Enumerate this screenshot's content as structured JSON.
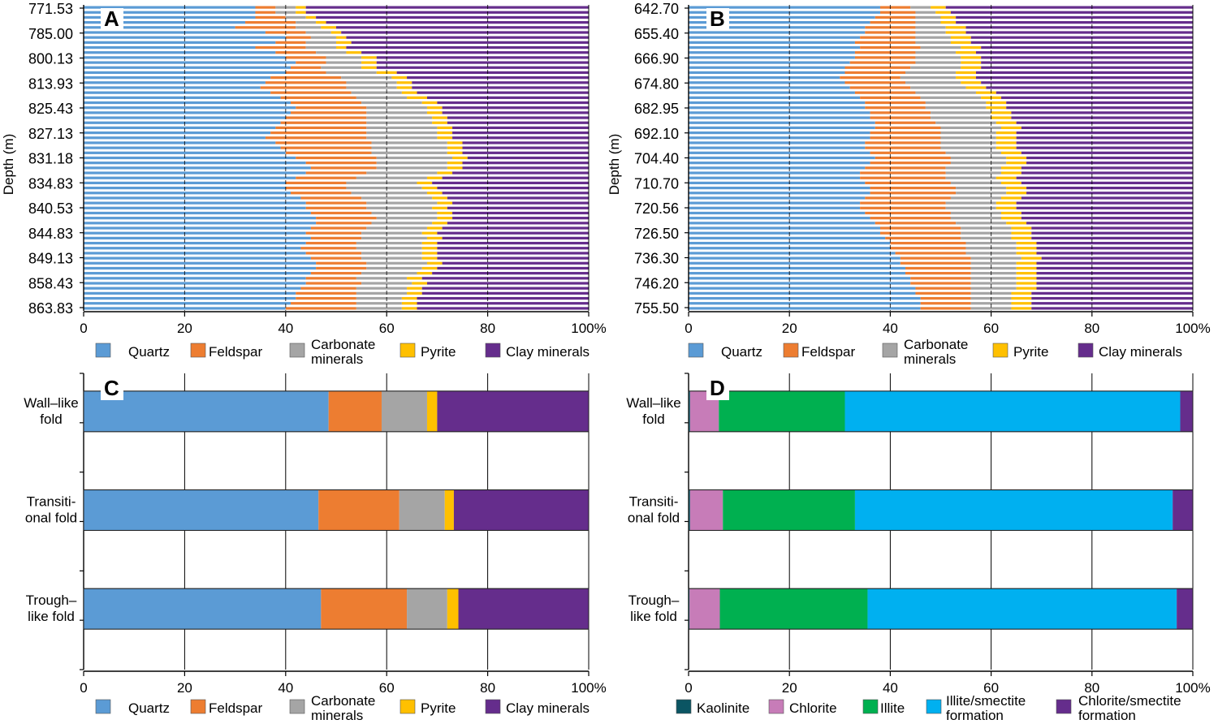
{
  "chart_data": [
    {
      "id": "A",
      "type": "bar",
      "orientation": "horizontal",
      "stacked": true,
      "panel_label": "A",
      "ylabel": "Depth (m)",
      "xlim": [
        0,
        100
      ],
      "x_ticks": [
        "0",
        "20",
        "40",
        "60",
        "80",
        "100%"
      ],
      "y_tick_labels": [
        "771.53",
        "785.00",
        "800.13",
        "813.93",
        "825.43",
        "827.13",
        "831.18",
        "834.83",
        "840.53",
        "844.83",
        "849.13",
        "858.43",
        "863.83"
      ],
      "grid": "vertical dashed",
      "bar_count": 61,
      "legend": [
        "Quartz",
        "Feldspar",
        "Carbonate minerals",
        "Pyrite",
        "Clay minerals"
      ],
      "series": [
        {
          "name": "Quartz",
          "values": [
            34,
            34,
            34,
            32,
            30,
            36,
            40,
            38,
            34,
            38,
            40,
            42,
            41,
            40,
            37,
            36,
            35,
            37,
            39,
            41,
            42,
            41,
            40,
            39,
            38,
            37,
            36,
            38,
            39,
            40,
            42,
            44,
            45,
            44,
            42,
            40,
            40,
            41,
            43,
            44,
            44,
            45,
            46,
            46,
            45,
            44,
            45,
            44,
            43,
            44,
            45,
            46,
            46,
            45,
            44,
            44,
            43,
            42,
            42,
            41,
            40
          ]
        },
        {
          "name": "Feldspar",
          "values": [
            4,
            4,
            6,
            10,
            12,
            8,
            5,
            6,
            10,
            8,
            8,
            6,
            6,
            8,
            14,
            16,
            17,
            16,
            15,
            14,
            14,
            15,
            16,
            17,
            18,
            19,
            20,
            19,
            18,
            17,
            16,
            14,
            13,
            12,
            12,
            12,
            12,
            12,
            12,
            12,
            12,
            12,
            12,
            11,
            11,
            11,
            10,
            10,
            11,
            11,
            10,
            10,
            10,
            10,
            10,
            11,
            11,
            12,
            12,
            13,
            14
          ]
        },
        {
          "name": "Carbonate minerals",
          "values": [
            4,
            4,
            4,
            4,
            5,
            5,
            5,
            6,
            6,
            6,
            7,
            7,
            8,
            10,
            10,
            10,
            10,
            10,
            10,
            12,
            12,
            12,
            13,
            13,
            14,
            14,
            14,
            15,
            15,
            15,
            15,
            14,
            14,
            14,
            14,
            14,
            15,
            15,
            14,
            14,
            13,
            13,
            12,
            12,
            12,
            12,
            13,
            13,
            13,
            12,
            12,
            12,
            11,
            11,
            10,
            10,
            10,
            10,
            9,
            9,
            9
          ]
        },
        {
          "name": "Pyrite",
          "values": [
            2,
            2,
            2,
            2,
            3,
            2,
            2,
            3,
            2,
            3,
            3,
            3,
            3,
            4,
            3,
            3,
            3,
            3,
            4,
            3,
            3,
            3,
            3,
            3,
            3,
            3,
            3,
            3,
            3,
            3,
            3,
            3,
            3,
            3,
            3,
            3,
            3,
            3,
            3,
            3,
            3,
            3,
            3,
            3,
            3,
            3,
            3,
            3,
            3,
            3,
            3,
            3,
            3,
            3,
            3,
            3,
            3,
            3,
            3,
            3,
            3
          ]
        }
      ],
      "note": "Clay minerals fill each bar to 100%"
    },
    {
      "id": "B",
      "type": "bar",
      "orientation": "horizontal",
      "stacked": true,
      "panel_label": "B",
      "ylabel": "Depth (m)",
      "xlim": [
        0,
        100
      ],
      "x_ticks": [
        "0",
        "20",
        "40",
        "60",
        "80",
        "100%"
      ],
      "y_tick_labels": [
        "642.70",
        "655.40",
        "666.90",
        "674.80",
        "682.95",
        "692.10",
        "704.40",
        "710.70",
        "720.56",
        "726.50",
        "736.30",
        "746.20",
        "755.50"
      ],
      "grid": "vertical dashed",
      "bar_count": 61,
      "legend": [
        "Quartz",
        "Feldspar",
        "Carbonate minerals",
        "Pyrite",
        "Clay minerals"
      ],
      "series": [
        {
          "name": "Quartz",
          "values": [
            38,
            38,
            37,
            36,
            35,
            35,
            34,
            33,
            34,
            33,
            33,
            32,
            31,
            31,
            30,
            31,
            32,
            33,
            34,
            35,
            35,
            36,
            36,
            37,
            37,
            36,
            36,
            35,
            35,
            36,
            37,
            36,
            35,
            34,
            34,
            35,
            36,
            36,
            35,
            34,
            34,
            35,
            36,
            37,
            38,
            38,
            39,
            40,
            40,
            41,
            42,
            42,
            43,
            43,
            44,
            44,
            45,
            45,
            46,
            46,
            46
          ]
        },
        {
          "name": "Feldspar",
          "values": [
            6,
            7,
            8,
            9,
            10,
            10,
            11,
            12,
            12,
            12,
            12,
            13,
            13,
            12,
            12,
            12,
            12,
            12,
            12,
            12,
            12,
            12,
            12,
            12,
            13,
            14,
            14,
            15,
            15,
            15,
            15,
            16,
            16,
            17,
            17,
            17,
            17,
            17,
            17,
            17,
            17,
            17,
            16,
            16,
            16,
            16,
            15,
            15,
            15,
            14,
            14,
            14,
            13,
            13,
            12,
            12,
            11,
            11,
            10,
            10,
            10
          ]
        },
        {
          "name": "Carbonate minerals",
          "values": [
            4,
            4,
            5,
            5,
            6,
            6,
            7,
            7,
            8,
            8,
            9,
            9,
            10,
            10,
            11,
            11,
            11,
            12,
            12,
            12,
            12,
            12,
            12,
            12,
            12,
            11,
            11,
            11,
            11,
            11,
            11,
            11,
            11,
            11,
            10,
            10,
            10,
            10,
            10,
            10,
            10,
            10,
            10,
            10,
            10,
            10,
            10,
            10,
            10,
            10,
            10,
            9,
            9,
            9,
            9,
            9,
            9,
            8,
            8,
            8,
            8
          ]
        },
        {
          "name": "Pyrite",
          "values": [
            3,
            3,
            3,
            3,
            4,
            4,
            4,
            4,
            4,
            4,
            4,
            4,
            4,
            4,
            4,
            4,
            4,
            4,
            4,
            4,
            4,
            4,
            4,
            4,
            4,
            4,
            4,
            4,
            4,
            4,
            4,
            4,
            4,
            4,
            4,
            4,
            4,
            4,
            4,
            4,
            4,
            4,
            4,
            4,
            4,
            4,
            4,
            4,
            4,
            4,
            4,
            4,
            4,
            4,
            4,
            4,
            4,
            4,
            4,
            4,
            4
          ]
        }
      ],
      "note": "Clay minerals fill each bar to 100%"
    },
    {
      "id": "C",
      "type": "bar",
      "orientation": "horizontal",
      "stacked": true,
      "panel_label": "C",
      "xlim": [
        0,
        100
      ],
      "x_ticks": [
        "0",
        "20",
        "40",
        "60",
        "80",
        "100%"
      ],
      "categories": [
        "Wall-like fold",
        "Transitional fold",
        "Trough-like fold"
      ],
      "category_labels": [
        [
          "Wall–like",
          "fold"
        ],
        [
          "Transiti-",
          "onal fold"
        ],
        [
          "Trough–",
          "like fold"
        ]
      ],
      "legend": [
        "Quartz",
        "Feldspar",
        "Carbonate minerals",
        "Pyrite",
        "Clay minerals"
      ],
      "series": [
        {
          "name": "Quartz",
          "values": [
            48.5,
            46.5,
            47.0
          ]
        },
        {
          "name": "Feldspar",
          "values": [
            10.5,
            16.0,
            17.0
          ]
        },
        {
          "name": "Carbonate minerals",
          "values": [
            9.0,
            9.0,
            8.0
          ]
        },
        {
          "name": "Pyrite",
          "values": [
            2.0,
            1.8,
            2.2
          ]
        },
        {
          "name": "Clay minerals",
          "values": [
            30.0,
            26.7,
            25.8
          ]
        }
      ]
    },
    {
      "id": "D",
      "type": "bar",
      "orientation": "horizontal",
      "stacked": true,
      "panel_label": "D",
      "xlim": [
        0,
        100
      ],
      "x_ticks": [
        "0",
        "20",
        "40",
        "60",
        "80",
        "100%"
      ],
      "categories": [
        "Wall-like fold",
        "Transitional fold",
        "Trough-like fold"
      ],
      "category_labels": [
        [
          "Wall–like",
          "fold"
        ],
        [
          "Transiti-",
          "onal fold"
        ],
        [
          "Trough–",
          "like fold"
        ]
      ],
      "legend": [
        "Kaolinite",
        "Chlorite",
        "Illite",
        "Illite/smectite formation",
        "Chlorite/smectite formation"
      ],
      "series": [
        {
          "name": "Kaolinite",
          "values": [
            0.3,
            0.3,
            0.2
          ]
        },
        {
          "name": "Chlorite",
          "values": [
            5.7,
            6.5,
            6.0
          ]
        },
        {
          "name": "Illite",
          "values": [
            25.0,
            26.2,
            29.3
          ]
        },
        {
          "name": "Illite/smectite formation",
          "values": [
            66.5,
            63.0,
            61.3
          ]
        },
        {
          "name": "Chlorite/smectite formation",
          "values": [
            2.5,
            4.0,
            3.2
          ]
        }
      ]
    }
  ],
  "legend_rows": {
    "minerals": [
      {
        "name": "Quartz",
        "label": [
          "Quartz"
        ]
      },
      {
        "name": "Feldspar",
        "label": [
          "Feldspar"
        ]
      },
      {
        "name": "Carbonate minerals",
        "label": [
          "Carbonate",
          "minerals"
        ]
      },
      {
        "name": "Pyrite",
        "label": [
          "Pyrite"
        ]
      },
      {
        "name": "Clay minerals",
        "label": [
          "Clay minerals"
        ]
      }
    ],
    "clays": [
      {
        "name": "Kaolinite",
        "label": [
          "Kaolinite"
        ]
      },
      {
        "name": "Chlorite",
        "label": [
          "Chlorite"
        ]
      },
      {
        "name": "Illite",
        "label": [
          "Illite"
        ]
      },
      {
        "name": "Illite/smectite formation",
        "label": [
          "Illite/smectite",
          "formation"
        ]
      },
      {
        "name": "Chlorite/smectite formation",
        "label": [
          "Chlorite/smectite",
          "formation"
        ]
      }
    ]
  },
  "colors": {
    "Quartz": "#5b9bd5",
    "Feldspar": "#ed7d31",
    "Carbonate minerals": "#a5a5a5",
    "Pyrite": "#ffc000",
    "Clay minerals": "#652d8c",
    "Kaolinite": "#0b5563",
    "Chlorite": "#c77cb8",
    "Illite": "#00b050",
    "Illite/smectite formation": "#00b0f0",
    "Chlorite/smectite formation": "#652d8c"
  }
}
